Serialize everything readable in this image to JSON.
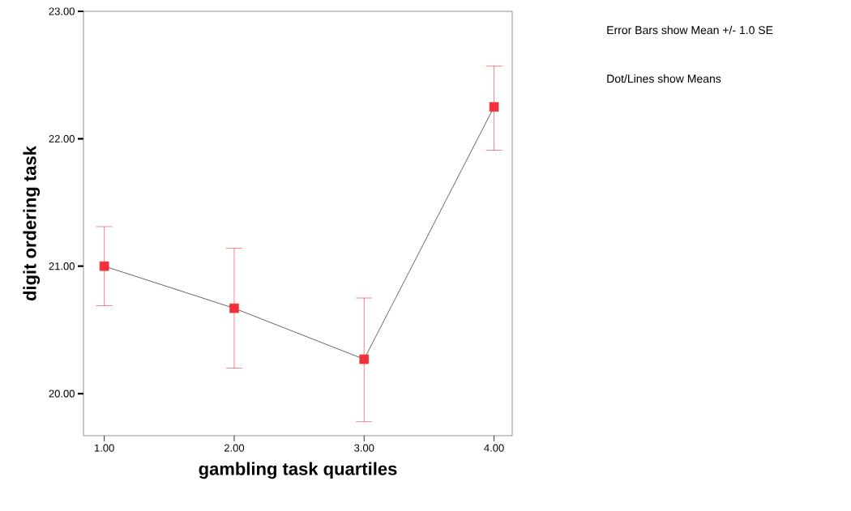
{
  "chart_data": {
    "type": "line",
    "xlabel": "gambling task quartiles",
    "ylabel": "digit ordering task",
    "x": [
      1,
      2,
      3,
      4
    ],
    "xlim": [
      0.84,
      4.14
    ],
    "xticks": [
      {
        "value": 1,
        "label": "1.00"
      },
      {
        "value": 2,
        "label": "2.00"
      },
      {
        "value": 3,
        "label": "3.00"
      },
      {
        "value": 4,
        "label": "4.00"
      }
    ],
    "ylim": [
      19.67,
      23.0
    ],
    "yticks": [
      {
        "value": 20,
        "label": "20.00"
      },
      {
        "value": 21,
        "label": "21.00"
      },
      {
        "value": 22,
        "label": "22.00"
      },
      {
        "value": 23,
        "label": "23.00"
      }
    ],
    "marker": "square",
    "series": [
      {
        "color": "#f0303a",
        "values": [
          21.0,
          20.67,
          20.27,
          22.25
        ],
        "errors": [
          [
            20.69,
            21.31
          ],
          [
            20.2,
            21.14
          ],
          [
            19.78,
            20.75
          ],
          [
            21.91,
            22.57
          ]
        ]
      }
    ],
    "annotations": [
      "Error Bars show Mean +/- 1.0 SE",
      "Dot/Lines show Means"
    ]
  }
}
